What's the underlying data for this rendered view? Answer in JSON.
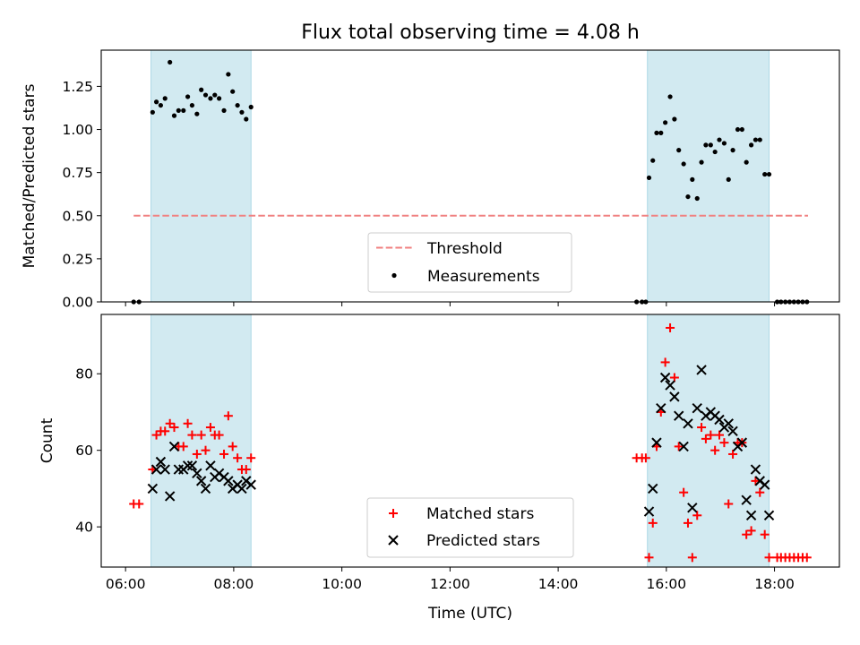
{
  "title": "Flux total observing time = 4.08 h",
  "colors": {
    "threshold": "#f08080",
    "shade": "#add8e6",
    "matched": "#ff0000",
    "predicted": "#000000",
    "measurement": "#000000"
  },
  "chart_data": [
    {
      "type": "scatter",
      "ylabel": "Matched/Predicted stars",
      "xlabel": "",
      "xlim": [
        5.55,
        19.2
      ],
      "ylim": [
        0,
        1.46
      ],
      "yticks": [
        0,
        0.25,
        0.5,
        0.75,
        1.0,
        1.25
      ],
      "ytick_labels": [
        "0.00",
        "0.25",
        "0.50",
        "0.75",
        "1.00",
        "1.25"
      ],
      "xticks": [
        6,
        8,
        10,
        12,
        14,
        16,
        18
      ],
      "xtick_labels": [],
      "grid": false,
      "legend_position": "bottom-center",
      "shaded_spans": [
        [
          6.47,
          8.32
        ],
        [
          15.65,
          17.9
        ]
      ],
      "threshold": {
        "name": "Threshold",
        "y": 0.5,
        "x": [
          6.15,
          18.62
        ]
      },
      "series": [
        {
          "name": "Measurements",
          "x": [
            6.15,
            6.25,
            6.5,
            6.57,
            6.65,
            6.73,
            6.82,
            6.9,
            6.98,
            7.07,
            7.15,
            7.23,
            7.32,
            7.4,
            7.48,
            7.57,
            7.65,
            7.73,
            7.82,
            7.9,
            7.98,
            8.07,
            8.15,
            8.23,
            8.32,
            15.45,
            15.55,
            15.62,
            15.68,
            15.75,
            15.82,
            15.9,
            15.98,
            16.07,
            16.15,
            16.23,
            16.32,
            16.4,
            16.48,
            16.57,
            16.65,
            16.73,
            16.82,
            16.9,
            16.98,
            17.07,
            17.15,
            17.23,
            17.32,
            17.4,
            17.48,
            17.57,
            17.65,
            17.73,
            17.82,
            17.9,
            18.05,
            18.12,
            18.2,
            18.28,
            18.36,
            18.44,
            18.52,
            18.6
          ],
          "y": [
            0.0,
            0.0,
            1.1,
            1.16,
            1.14,
            1.18,
            1.39,
            1.08,
            1.11,
            1.11,
            1.19,
            1.14,
            1.09,
            1.23,
            1.2,
            1.18,
            1.2,
            1.18,
            1.11,
            1.32,
            1.22,
            1.14,
            1.1,
            1.06,
            1.13,
            0.0,
            0.0,
            0.0,
            0.72,
            0.82,
            0.98,
            0.98,
            1.04,
            1.19,
            1.06,
            0.88,
            0.8,
            0.61,
            0.71,
            0.6,
            0.81,
            0.91,
            0.91,
            0.87,
            0.94,
            0.92,
            0.71,
            0.88,
            1.0,
            1.0,
            0.81,
            0.91,
            0.94,
            0.94,
            0.74,
            0.74,
            0.0,
            0.0,
            0.0,
            0.0,
            0.0,
            0.0,
            0.0,
            0.0
          ]
        }
      ]
    },
    {
      "type": "scatter",
      "ylabel": "Count",
      "xlabel": "Time (UTC)",
      "xlim": [
        5.55,
        19.2
      ],
      "ylim": [
        29.5,
        95.5
      ],
      "yticks": [
        40,
        60,
        80
      ],
      "ytick_labels": [
        "40",
        "60",
        "80"
      ],
      "xticks": [
        6,
        8,
        10,
        12,
        14,
        16,
        18
      ],
      "xtick_labels": [
        "06:00",
        "08:00",
        "10:00",
        "12:00",
        "14:00",
        "16:00",
        "18:00"
      ],
      "grid": false,
      "legend_position": "bottom-center",
      "shaded_spans": [
        [
          6.47,
          8.32
        ],
        [
          15.65,
          17.9
        ]
      ],
      "series": [
        {
          "name": "Matched stars",
          "marker": "plus",
          "x": [
            6.15,
            6.25,
            6.5,
            6.57,
            6.65,
            6.73,
            6.82,
            6.9,
            6.98,
            7.07,
            7.15,
            7.23,
            7.32,
            7.4,
            7.48,
            7.57,
            7.65,
            7.73,
            7.82,
            7.9,
            7.98,
            8.07,
            8.15,
            8.23,
            8.32,
            15.45,
            15.55,
            15.62,
            15.68,
            15.75,
            15.82,
            15.9,
            15.98,
            16.07,
            16.15,
            16.23,
            16.32,
            16.4,
            16.48,
            16.57,
            16.65,
            16.73,
            16.82,
            16.9,
            16.98,
            17.07,
            17.15,
            17.23,
            17.32,
            17.4,
            17.48,
            17.57,
            17.65,
            17.73,
            17.82,
            17.9,
            18.05,
            18.12,
            18.2,
            18.28,
            18.36,
            18.44,
            18.52,
            18.6
          ],
          "y": [
            46,
            46,
            55,
            64,
            65,
            65,
            67,
            66,
            61,
            61,
            67,
            64,
            59,
            64,
            60,
            66,
            64,
            64,
            59,
            69,
            61,
            58,
            55,
            55,
            58,
            58,
            58,
            58,
            32,
            41,
            61,
            70,
            83,
            92,
            79,
            61,
            49,
            41,
            32,
            43,
            66,
            63,
            64,
            60,
            64,
            62,
            46,
            59,
            62,
            62,
            38,
            39,
            52,
            49,
            38,
            32,
            32,
            32,
            32,
            32,
            32,
            32,
            32,
            32
          ]
        },
        {
          "name": "Predicted stars",
          "marker": "x",
          "x": [
            6.5,
            6.57,
            6.65,
            6.73,
            6.82,
            6.9,
            6.98,
            7.07,
            7.15,
            7.23,
            7.32,
            7.4,
            7.48,
            7.57,
            7.65,
            7.73,
            7.82,
            7.9,
            7.98,
            8.07,
            8.15,
            8.23,
            8.32,
            15.68,
            15.75,
            15.82,
            15.9,
            15.98,
            16.07,
            16.15,
            16.23,
            16.32,
            16.4,
            16.48,
            16.57,
            16.65,
            16.73,
            16.82,
            16.9,
            16.98,
            17.07,
            17.15,
            17.23,
            17.32,
            17.4,
            17.48,
            17.57,
            17.65,
            17.73,
            17.82,
            17.9
          ],
          "y": [
            50,
            55,
            57,
            55,
            48,
            61,
            55,
            55,
            56,
            56,
            54,
            52,
            50,
            56,
            53,
            54,
            53,
            52,
            50,
            51,
            50,
            52,
            51,
            44,
            50,
            62,
            71,
            79,
            77,
            74,
            69,
            61,
            67,
            45,
            71,
            81,
            69,
            70,
            69,
            68,
            66,
            67,
            65,
            61,
            62,
            47,
            43,
            55,
            52,
            51,
            43
          ]
        }
      ]
    }
  ]
}
